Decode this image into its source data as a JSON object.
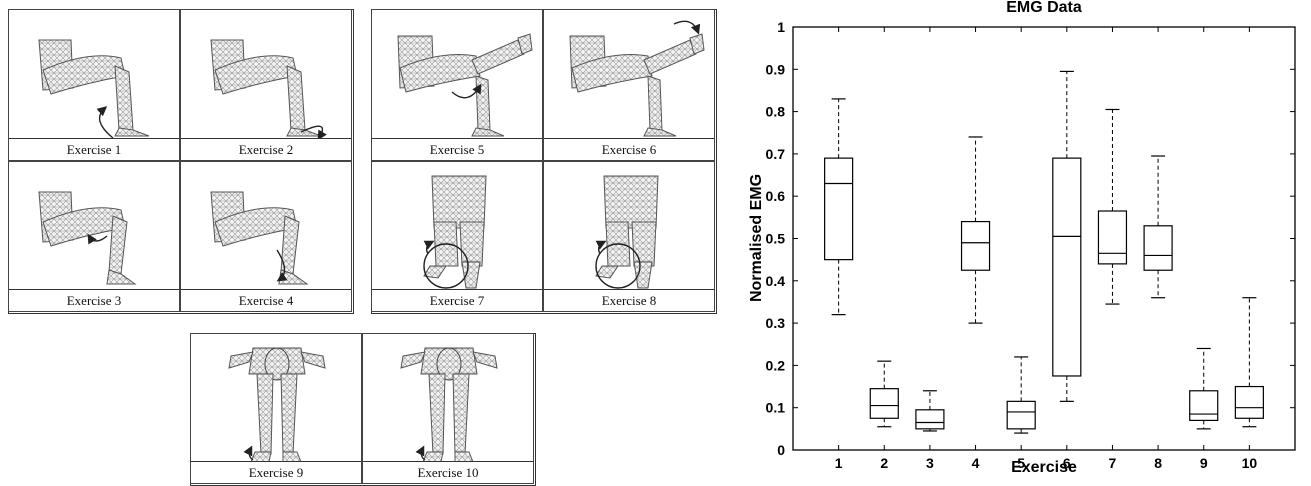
{
  "figure": {
    "exercise_panels": [
      {
        "label": "Exercise 1",
        "pose": "ankle-up"
      },
      {
        "label": "Exercise 2",
        "pose": "ankle-down"
      },
      {
        "label": "Exercise 3",
        "pose": "knee-pull"
      },
      {
        "label": "Exercise 4",
        "pose": "knee-push"
      },
      {
        "label": "Exercise 5",
        "pose": "leg-extend"
      },
      {
        "label": "Exercise 6",
        "pose": "leg-extend-toe"
      },
      {
        "label": "Exercise 7",
        "pose": "front-rotate"
      },
      {
        "label": "Exercise 8",
        "pose": "front-rotate"
      },
      {
        "label": "Exercise 9",
        "pose": "front-standing"
      },
      {
        "label": "Exercise 10",
        "pose": "front-standing"
      }
    ]
  },
  "chart_data": {
    "type": "box",
    "title": "EMG Data",
    "xlabel": "Exercise",
    "ylabel": "Normalised EMG",
    "ylim": [
      0,
      1
    ],
    "yticks": [
      "0",
      "0.1",
      "0.2",
      "0.3",
      "0.4",
      "0.5",
      "0.6",
      "0.7",
      "0.8",
      "0.9",
      "1"
    ],
    "categories": [
      "1",
      "2",
      "3",
      "4",
      "5",
      "6",
      "7",
      "8",
      "9",
      "10"
    ],
    "boxes": [
      {
        "min": 0.32,
        "q1": 0.45,
        "median": 0.63,
        "q3": 0.69,
        "max": 0.83
      },
      {
        "min": 0.055,
        "q1": 0.075,
        "median": 0.105,
        "q3": 0.145,
        "max": 0.21
      },
      {
        "min": 0.045,
        "q1": 0.05,
        "median": 0.065,
        "q3": 0.095,
        "max": 0.14
      },
      {
        "min": 0.3,
        "q1": 0.425,
        "median": 0.49,
        "q3": 0.54,
        "max": 0.74
      },
      {
        "min": 0.04,
        "q1": 0.05,
        "median": 0.09,
        "q3": 0.115,
        "max": 0.22
      },
      {
        "min": 0.115,
        "q1": 0.175,
        "median": 0.505,
        "q3": 0.69,
        "max": 0.895
      },
      {
        "min": 0.345,
        "q1": 0.44,
        "median": 0.465,
        "q3": 0.565,
        "max": 0.805
      },
      {
        "min": 0.36,
        "q1": 0.425,
        "median": 0.46,
        "q3": 0.53,
        "max": 0.695
      },
      {
        "min": 0.05,
        "q1": 0.07,
        "median": 0.085,
        "q3": 0.14,
        "max": 0.24
      },
      {
        "min": 0.055,
        "q1": 0.075,
        "median": 0.1,
        "q3": 0.15,
        "max": 0.36
      }
    ],
    "grid": false,
    "colors": {
      "box": "#000000",
      "median": "#000000",
      "whisker": "#000000"
    }
  }
}
